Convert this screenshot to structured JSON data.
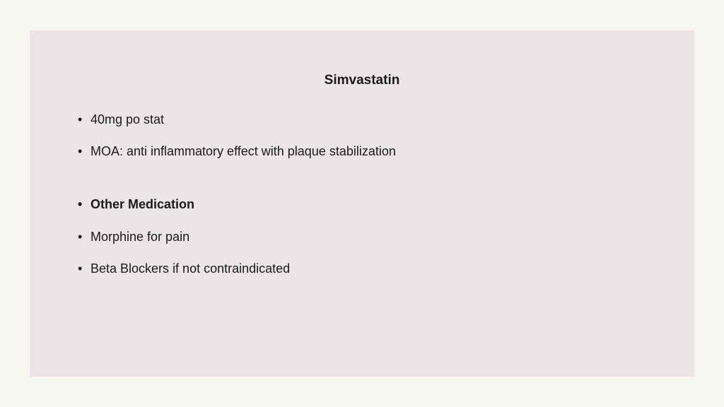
{
  "colors": {
    "page_background": "#f6f6f0",
    "slide_background": "#ece5e7",
    "text": "#1a1a1a"
  },
  "typography": {
    "title_fontsize": 19,
    "body_fontsize": 18,
    "font_family": "Verdana, Tahoma, Geneva, sans-serif"
  },
  "slide": {
    "title": "Simvastatin",
    "bullets": [
      {
        "text": "40mg po stat",
        "bold": false
      },
      {
        "text": "MOA: anti inflammatory effect with plaque stabilization",
        "bold": false
      },
      {
        "text": "Other Medication",
        "bold": true,
        "gap_before": true
      },
      {
        "text": "Morphine for pain",
        "bold": false
      },
      {
        "text": "Beta Blockers if not contraindicated",
        "bold": false
      }
    ]
  }
}
